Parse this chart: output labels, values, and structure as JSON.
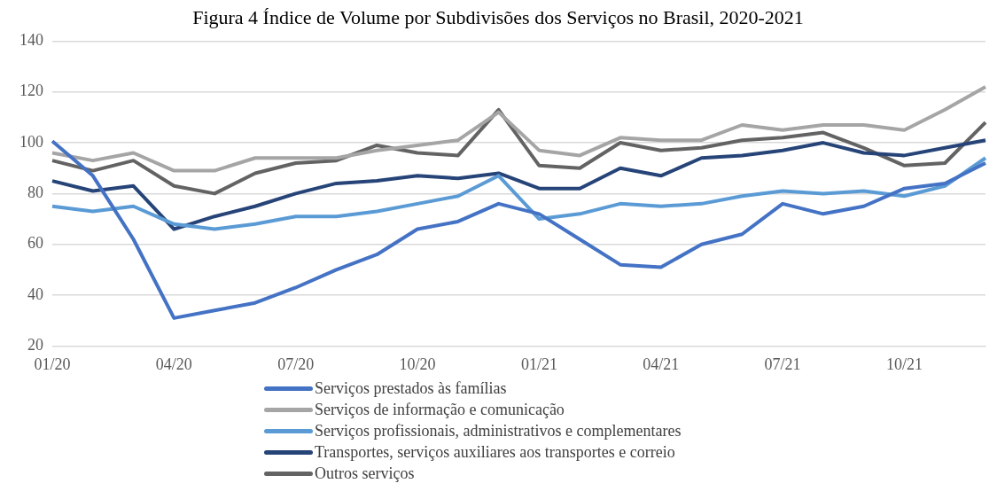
{
  "chart_data": {
    "type": "line",
    "title": "Figura 4 Índice de Volume por Subdivisões dos Serviços no Brasil, 2020-2021",
    "categories": [
      "01/20",
      null,
      null,
      "04/20",
      null,
      null,
      "07/20",
      null,
      null,
      "10/20",
      null,
      null,
      "01/21",
      null,
      null,
      "04/21",
      null,
      null,
      "07/21",
      null,
      null,
      "10/21",
      null,
      null
    ],
    "series": [
      {
        "name": "Serviços prestados às famílias",
        "color": "#4472c4",
        "values": [
          100.6,
          87,
          62,
          31,
          34,
          37,
          43,
          50,
          56,
          66,
          69,
          76,
          72,
          62,
          52,
          51,
          60,
          64,
          76,
          72,
          75,
          82,
          84,
          92
        ]
      },
      {
        "name": "Serviços de informação e comunicação",
        "color": "#a5a5a5",
        "values": [
          96,
          93,
          96,
          89,
          89,
          94,
          94,
          94,
          97,
          99,
          101,
          112,
          97,
          95,
          102,
          101,
          101,
          107,
          105,
          107,
          107,
          105,
          113,
          122
        ]
      },
      {
        "name": "Serviços profissionais, administrativos e complementares",
        "color": "#5b9bd5",
        "values": [
          75,
          73,
          75,
          68,
          66,
          68,
          71,
          71,
          73,
          76,
          79,
          87,
          70,
          72,
          76,
          75,
          76,
          79,
          81,
          80,
          81,
          79,
          83,
          94
        ]
      },
      {
        "name": "Transportes, serviços auxiliares aos transportes e correio",
        "color": "#264478",
        "values": [
          85,
          81,
          83,
          66,
          71,
          75,
          80,
          84,
          85,
          87,
          86,
          88,
          82,
          82,
          90,
          87,
          94,
          95,
          97,
          100,
          96,
          95,
          98,
          101
        ]
      },
      {
        "name": "Outros serviços",
        "color": "#636363",
        "values": [
          93,
          89,
          93,
          83,
          80,
          88,
          92,
          93,
          99,
          96,
          95,
          113,
          91,
          90,
          100,
          97,
          98,
          101,
          102,
          104,
          98,
          91,
          92,
          108
        ]
      }
    ],
    "ylim": [
      20,
      140
    ],
    "yticks": [
      20,
      40,
      60,
      80,
      100,
      120,
      140
    ],
    "grid": "y",
    "legend": "bottom",
    "marker": "none",
    "line_style": "solid"
  }
}
